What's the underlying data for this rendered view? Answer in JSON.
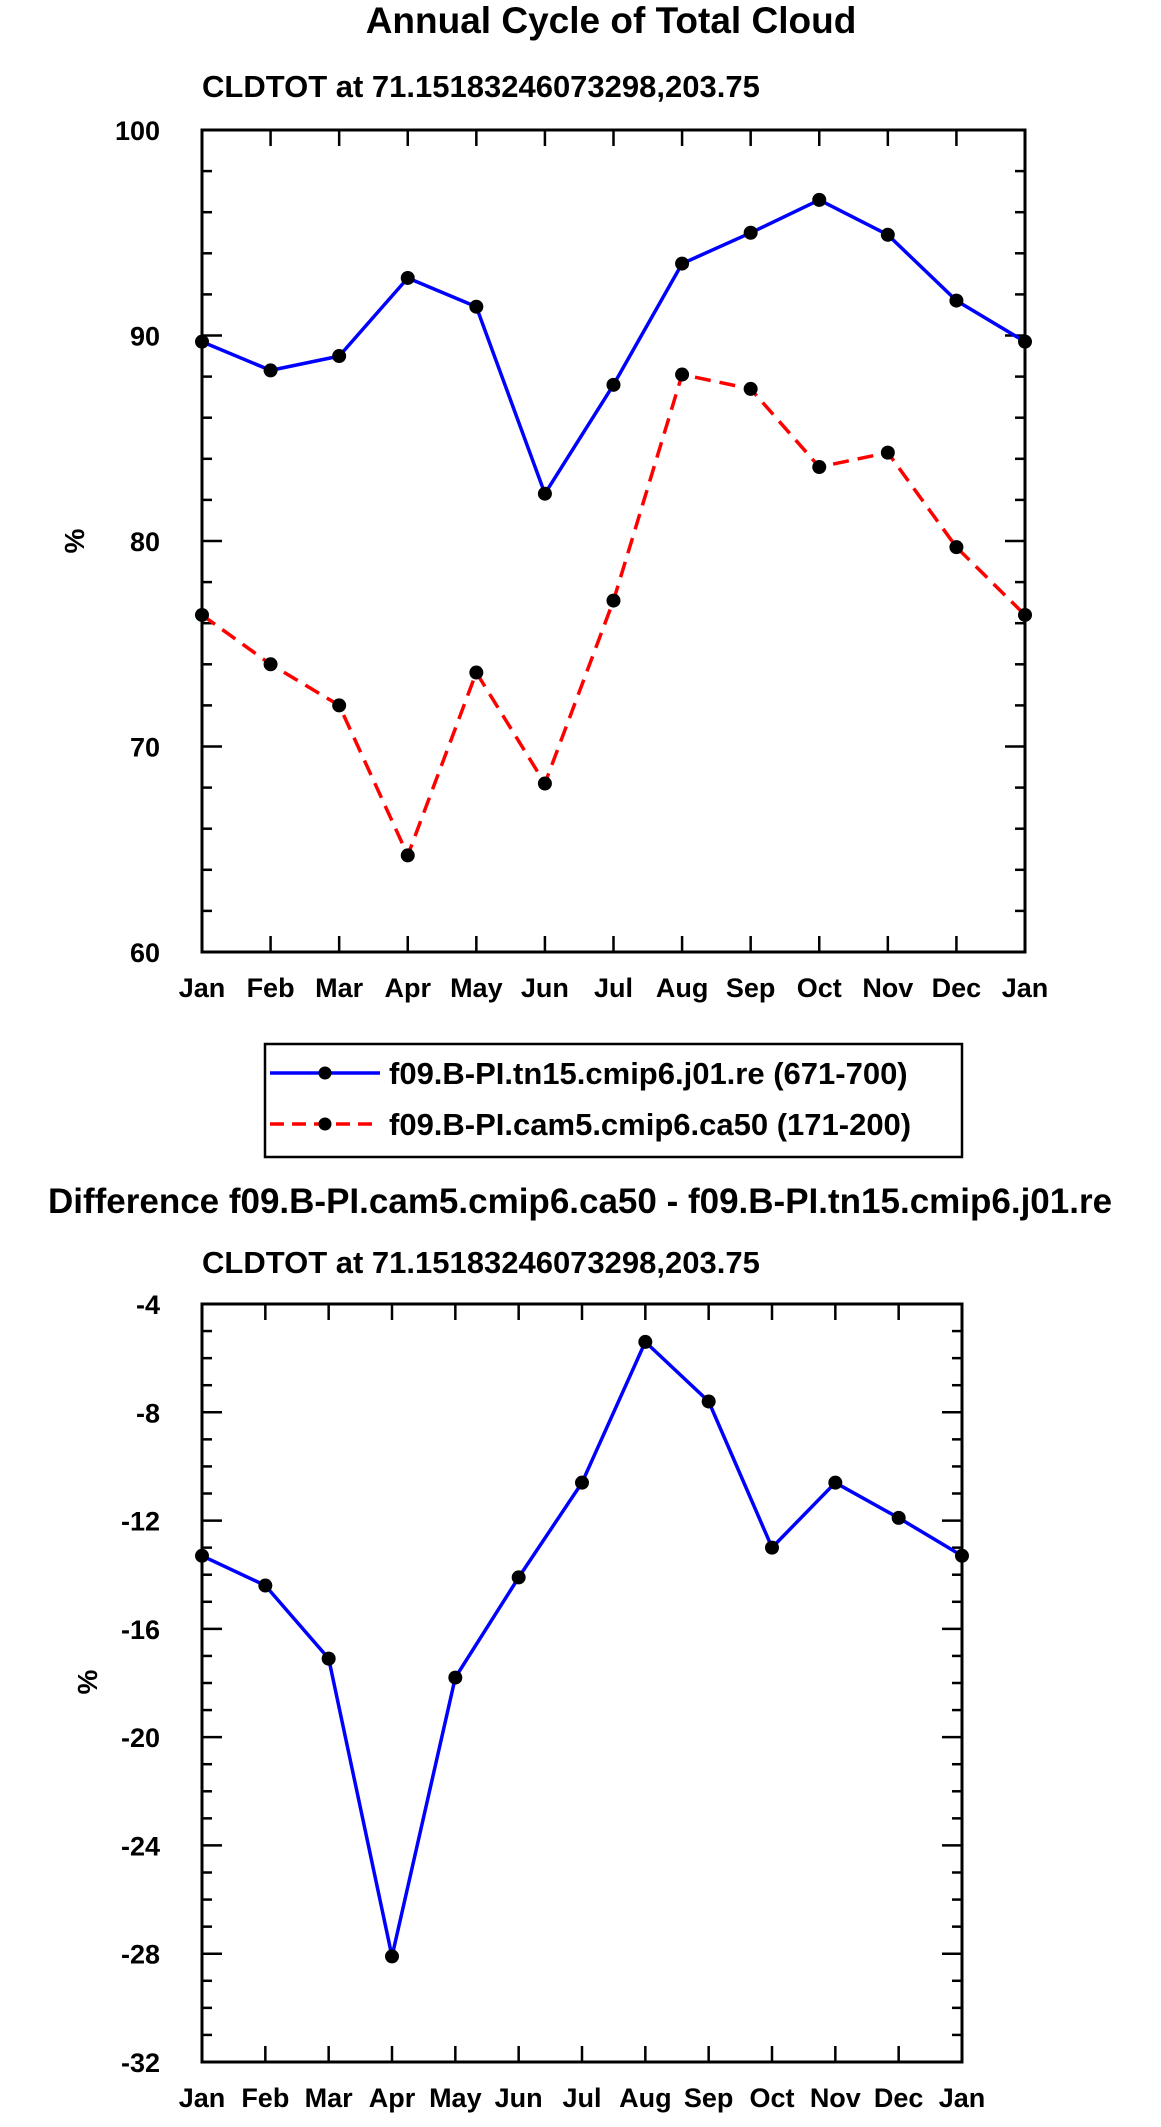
{
  "chart_data": [
    {
      "type": "line",
      "title": "Annual Cycle of Total Cloud",
      "subtitle": "CLDTOT at 71.15183246073298,203.75",
      "xlabel": "",
      "ylabel": "%",
      "categories": [
        "Jan",
        "Feb",
        "Mar",
        "Apr",
        "May",
        "Jun",
        "Jul",
        "Aug",
        "Sep",
        "Oct",
        "Nov",
        "Dec",
        "Jan"
      ],
      "ylim": [
        60,
        100
      ],
      "yticks": [
        60,
        70,
        80,
        90,
        100
      ],
      "grid": false,
      "legend_position": "bottom",
      "series": [
        {
          "name": "f09.B-PI.tn15.cmip6.j01.re (671-700)",
          "color": "#0000ff",
          "dash": "solid",
          "values": [
            89.7,
            88.3,
            89.0,
            92.8,
            91.4,
            82.3,
            87.6,
            93.5,
            95.0,
            96.6,
            94.9,
            91.7,
            89.7
          ]
        },
        {
          "name": "f09.B-PI.cam5.cmip6.ca50 (171-200)",
          "color": "#ff0000",
          "dash": "dashed",
          "values": [
            76.4,
            74.0,
            72.0,
            64.7,
            73.6,
            68.2,
            77.1,
            88.1,
            87.4,
            83.6,
            84.3,
            79.7,
            76.4
          ]
        }
      ]
    },
    {
      "type": "line",
      "title": "Difference f09.B-PI.cam5.cmip6.ca50 - f09.B-PI.tn15.cmip6.j01.re",
      "subtitle": "CLDTOT at 71.15183246073298,203.75",
      "xlabel": "",
      "ylabel": "%",
      "categories": [
        "Jan",
        "Feb",
        "Mar",
        "Apr",
        "May",
        "Jun",
        "Jul",
        "Aug",
        "Sep",
        "Oct",
        "Nov",
        "Dec",
        "Jan"
      ],
      "ylim": [
        -32,
        -4
      ],
      "yticks": [
        -32,
        -28,
        -24,
        -20,
        -16,
        -12,
        -8,
        -4
      ],
      "grid": false,
      "series": [
        {
          "name": "Difference",
          "color": "#0000ff",
          "dash": "solid",
          "values": [
            -13.3,
            -14.4,
            -17.1,
            -28.1,
            -17.8,
            -14.1,
            -10.6,
            -5.4,
            -7.6,
            -13.0,
            -10.6,
            -11.9,
            -13.3
          ]
        }
      ]
    }
  ]
}
